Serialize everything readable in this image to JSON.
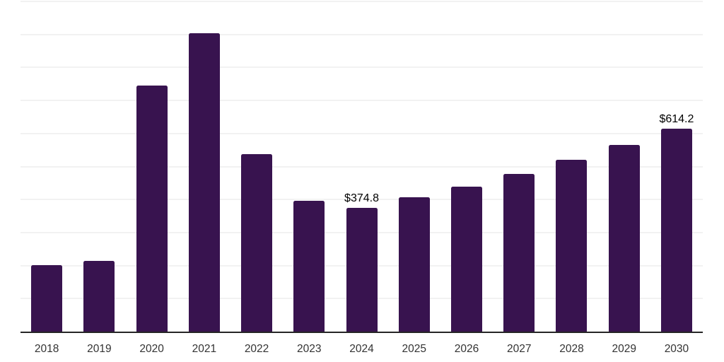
{
  "chart_data": {
    "type": "bar",
    "title": "",
    "xlabel": "",
    "ylabel": "",
    "categories": [
      "2018",
      "2019",
      "2020",
      "2021",
      "2022",
      "2023",
      "2024",
      "2025",
      "2026",
      "2027",
      "2028",
      "2029",
      "2030"
    ],
    "values": [
      201,
      214,
      745,
      903,
      537,
      396,
      374.8,
      406,
      438,
      478,
      520,
      565,
      614.2
    ],
    "annotations": [
      {
        "category": "2024",
        "label": "$374.8"
      },
      {
        "category": "2030",
        "label": "$614.2"
      }
    ],
    "ylim": [
      0,
      1000
    ],
    "gridline_step": 100,
    "grid": true,
    "legend": "none",
    "y_axis_ticks_visible": false,
    "colors": {
      "bar": "#38134F",
      "gridline": "#f2f2f2",
      "axis_line": "#262626",
      "tick_label": "#333333",
      "data_label": "#000000",
      "background": "#ffffff"
    }
  }
}
